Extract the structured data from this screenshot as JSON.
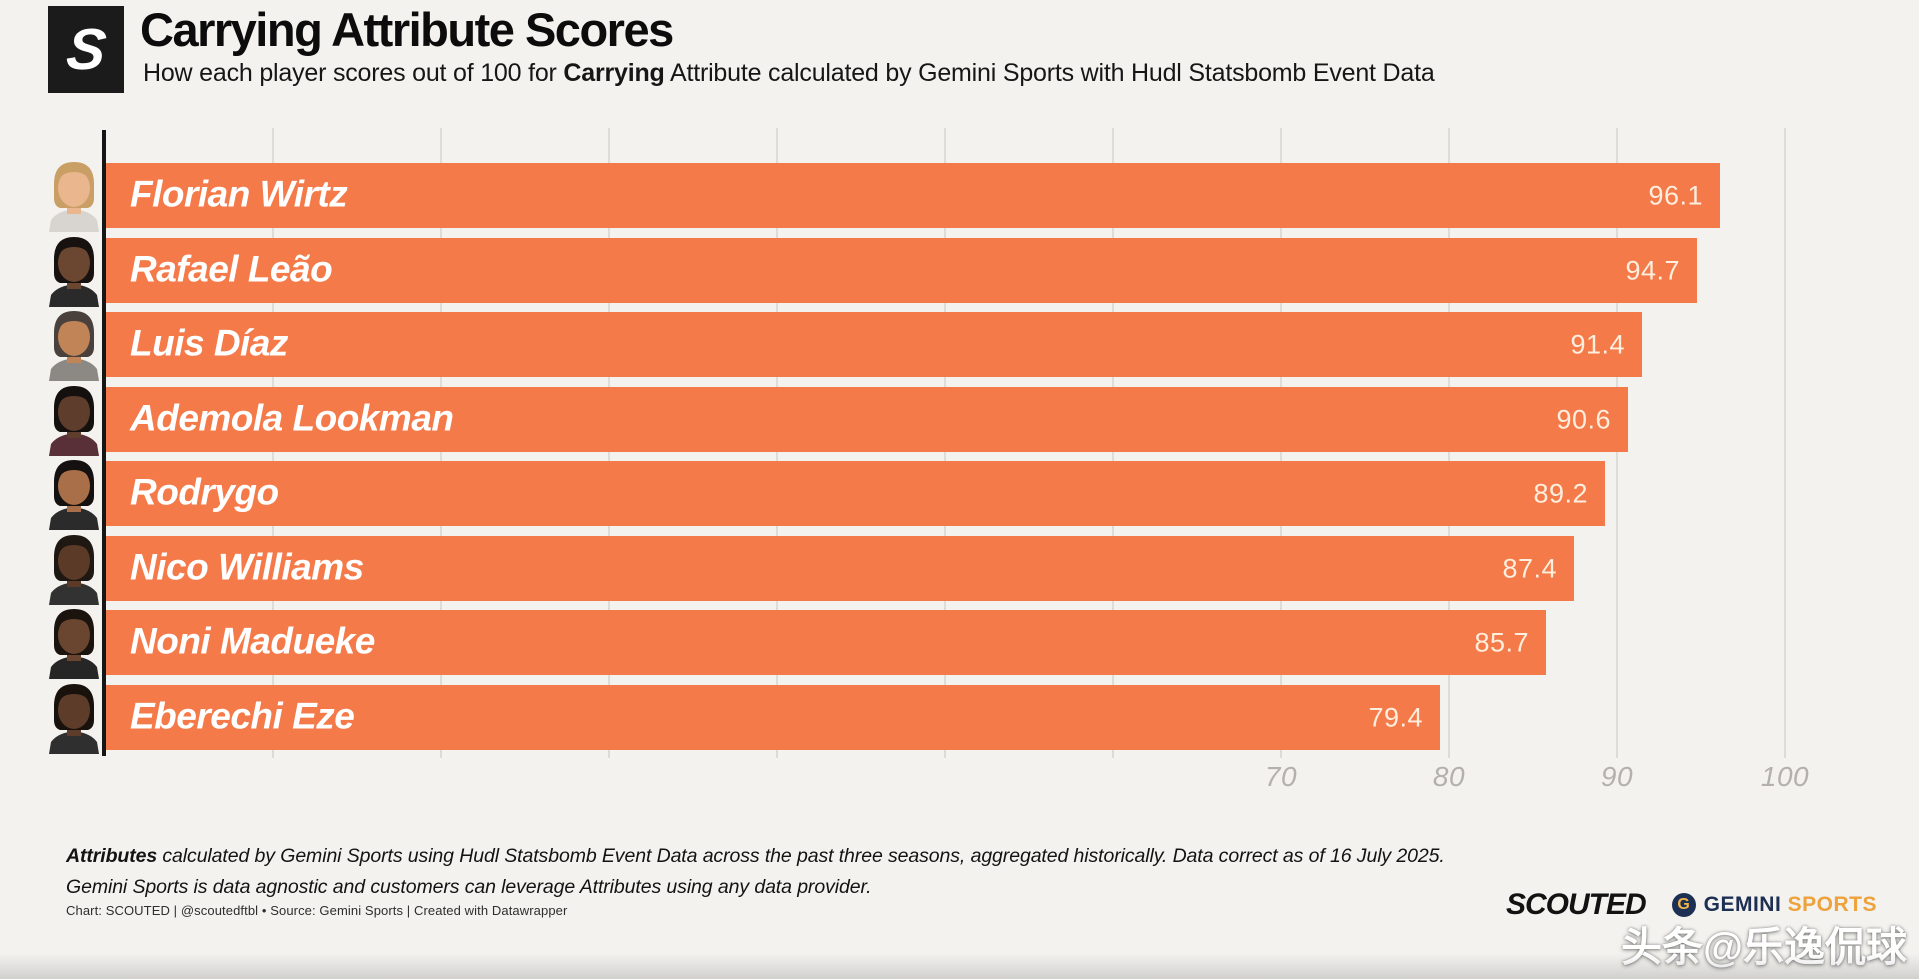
{
  "header": {
    "logo_letter": "S",
    "title": "Carrying Attribute Scores",
    "subtitle_prefix": "How each player scores out of 100 for ",
    "subtitle_bold": "Carrying",
    "subtitle_suffix": " Attribute calculated by Gemini Sports with Hudl Statsbomb Event Data"
  },
  "chart_data": {
    "type": "bar",
    "orientation": "horizontal",
    "title": "Carrying Attribute Scores",
    "categories": [
      "Florian Wirtz",
      "Rafael Leão",
      "Luis Díaz",
      "Ademola Lookman",
      "Rodrygo",
      "Nico Williams",
      "Noni Madueke",
      "Eberechi Eze"
    ],
    "values": [
      96.1,
      94.7,
      91.4,
      90.6,
      89.2,
      87.4,
      85.7,
      79.4
    ],
    "xlim": [
      0,
      100
    ],
    "x_ticks": [
      70,
      80,
      90,
      100
    ],
    "grid": true,
    "grid_step": 10,
    "legend": "none",
    "bar_color": "#f47a4a",
    "value_label_color": "#fdeedd",
    "name_label_color": "#ffffff",
    "avatars": [
      {
        "skin": "#e9b68e",
        "hair": "#c99f66",
        "shirt": "#d8d4cf"
      },
      {
        "skin": "#6b4630",
        "hair": "#171210",
        "shirt": "#2a2a2a"
      },
      {
        "skin": "#c08457",
        "hair": "#4a413c",
        "shirt": "#8c8984"
      },
      {
        "skin": "#5f3d2c",
        "hair": "#14100d",
        "shirt": "#5a3038"
      },
      {
        "skin": "#a96f48",
        "hair": "#151110",
        "shirt": "#2b2b2b"
      },
      {
        "skin": "#5c3a28",
        "hair": "#1f1711",
        "shirt": "#323232"
      },
      {
        "skin": "#6a4530",
        "hair": "#1b130d",
        "shirt": "#262626"
      },
      {
        "skin": "#5e3c2a",
        "hair": "#19120c",
        "shirt": "#2f2f2f"
      }
    ]
  },
  "footnote": {
    "line1_bold": "Attributes",
    "line1_rest": " calculated by Gemini Sports using Hudl Statsbomb Event Data across the past three seasons, aggregated historically. Data correct as of 16 July 2025.",
    "line2": "Gemini Sports is data agnostic and customers can leverage Attributes using any data provider."
  },
  "credit": "Chart: SCOUTED | @scoutedftbl • Source: Gemini Sports | Created with Datawrapper",
  "branding": {
    "scouted": "SCOUTED",
    "gemini_letter": "G",
    "gemini_word1": "GEMINI",
    "gemini_word2": "SPORTS"
  },
  "watermark": "头条@乐逸侃球"
}
